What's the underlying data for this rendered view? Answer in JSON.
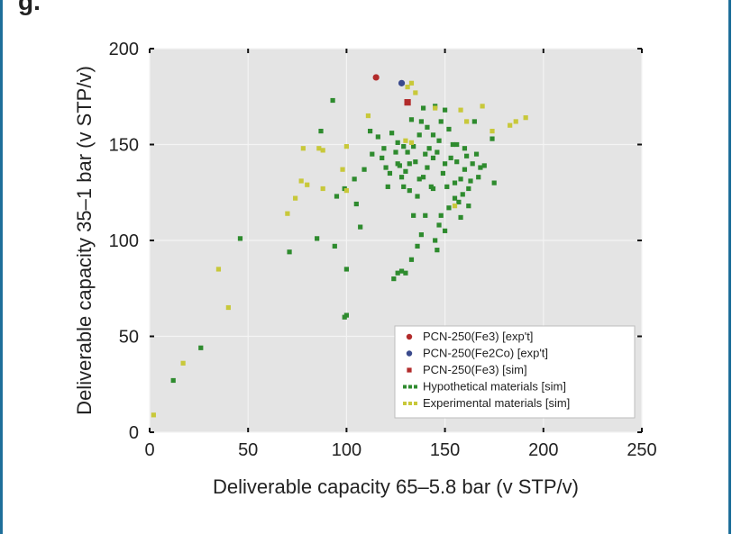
{
  "header": {
    "fragment": "g."
  },
  "chart_data": {
    "type": "scatter",
    "title": "",
    "xlabel": "Deliverable capacity 65–5.8 bar (v STP/v)",
    "ylabel": "Deliverable capacity 35–1 bar (v STP/v)",
    "xlim": [
      0,
      250
    ],
    "ylim": [
      0,
      200
    ],
    "xticks": [
      "0",
      "50",
      "100",
      "150",
      "200",
      "250"
    ],
    "yticks": [
      "0",
      "50",
      "100",
      "150",
      "200"
    ],
    "grid": true,
    "legend_position": "bottom-right",
    "series": [
      {
        "name": "PCN-250(Fe3) [exp't]",
        "color": "#b22b2b",
        "marker": "circle",
        "points": [
          [
            115,
            185
          ]
        ]
      },
      {
        "name": "PCN-250(Fe2Co) [exp't]",
        "color": "#3a4a8c",
        "marker": "circle",
        "points": [
          [
            128,
            182
          ]
        ]
      },
      {
        "name": "PCN-250(Fe3) [sim]",
        "color": "#b22b2b",
        "marker": "square",
        "points": [
          [
            131,
            172
          ]
        ]
      },
      {
        "name": "Hypothetical materials [sim]",
        "color": "#2e8b2e",
        "marker": "square",
        "points": [
          [
            12,
            27
          ],
          [
            26,
            44
          ],
          [
            46,
            101
          ],
          [
            71,
            94
          ],
          [
            85,
            101
          ],
          [
            93,
            173
          ],
          [
            94,
            97
          ],
          [
            87,
            157
          ],
          [
            95,
            123
          ],
          [
            99,
            127
          ],
          [
            99,
            60
          ],
          [
            100,
            61
          ],
          [
            100,
            85
          ],
          [
            104,
            132
          ],
          [
            105,
            119
          ],
          [
            107,
            107
          ],
          [
            109,
            137
          ],
          [
            112,
            157
          ],
          [
            113,
            145
          ],
          [
            116,
            154
          ],
          [
            124,
            80
          ],
          [
            126,
            83
          ],
          [
            128,
            84
          ],
          [
            130,
            83
          ],
          [
            133,
            90
          ],
          [
            136,
            97
          ],
          [
            138,
            162
          ],
          [
            138,
            103
          ],
          [
            140,
            113
          ],
          [
            142,
            148
          ],
          [
            143,
            128
          ],
          [
            144,
            143
          ],
          [
            145,
            100
          ],
          [
            146,
            95
          ],
          [
            147,
            108
          ],
          [
            148,
            113
          ],
          [
            150,
            105
          ],
          [
            152,
            117
          ],
          [
            154,
            150
          ],
          [
            155,
            130
          ],
          [
            156,
            141
          ],
          [
            157,
            120
          ],
          [
            158,
            112
          ],
          [
            159,
            124
          ],
          [
            160,
            137
          ],
          [
            161,
            144
          ],
          [
            162,
            118
          ],
          [
            163,
            131
          ],
          [
            164,
            140
          ],
          [
            165,
            162
          ],
          [
            166,
            145
          ],
          [
            167,
            133
          ],
          [
            168,
            138
          ],
          [
            170,
            139
          ],
          [
            118,
            143
          ],
          [
            120,
            138
          ],
          [
            122,
            135
          ],
          [
            125,
            146
          ],
          [
            127,
            139
          ],
          [
            129,
            128
          ],
          [
            130,
            136
          ],
          [
            132,
            126
          ],
          [
            134,
            149
          ],
          [
            135,
            141
          ],
          [
            137,
            155
          ],
          [
            139,
            133
          ],
          [
            141,
            138
          ],
          [
            144,
            155
          ],
          [
            146,
            146
          ],
          [
            149,
            135
          ],
          [
            151,
            128
          ],
          [
            153,
            143
          ],
          [
            131,
            146
          ],
          [
            128,
            133
          ],
          [
            119,
            148
          ],
          [
            123,
            156
          ],
          [
            136,
            123
          ],
          [
            134,
            113
          ],
          [
            148,
            162
          ],
          [
            152,
            158
          ],
          [
            156,
            150
          ],
          [
            162,
            127
          ],
          [
            139,
            169
          ],
          [
            133,
            163
          ],
          [
            126,
            151
          ],
          [
            121,
            128
          ],
          [
            158,
            132
          ],
          [
            155,
            122
          ],
          [
            150,
            140
          ],
          [
            147,
            152
          ],
          [
            144,
            127
          ],
          [
            140,
            145
          ],
          [
            137,
            132
          ],
          [
            132,
            140
          ],
          [
            129,
            149
          ],
          [
            126,
            140
          ],
          [
            174,
            153
          ],
          [
            160,
            148
          ],
          [
            150,
            168
          ],
          [
            145,
            170
          ],
          [
            141,
            159
          ],
          [
            175,
            130
          ]
        ]
      },
      {
        "name": "Experimental materials [sim]",
        "color": "#c8c83a",
        "marker": "square",
        "points": [
          [
            2,
            9
          ],
          [
            17,
            36
          ],
          [
            35,
            85
          ],
          [
            40,
            65
          ],
          [
            70,
            114
          ],
          [
            74,
            122
          ],
          [
            77,
            131
          ],
          [
            80,
            129
          ],
          [
            78,
            148
          ],
          [
            86,
            148
          ],
          [
            88,
            147
          ],
          [
            88,
            127
          ],
          [
            98,
            137
          ],
          [
            100,
            126
          ],
          [
            100,
            149
          ],
          [
            111,
            165
          ],
          [
            130,
            152
          ],
          [
            133,
            151
          ],
          [
            131,
            180
          ],
          [
            133,
            182
          ],
          [
            135,
            177
          ],
          [
            145,
            169
          ],
          [
            155,
            118
          ],
          [
            158,
            168
          ],
          [
            161,
            162
          ],
          [
            169,
            170
          ],
          [
            183,
            160
          ],
          [
            186,
            162
          ],
          [
            191,
            164
          ],
          [
            174,
            157
          ]
        ]
      }
    ]
  }
}
